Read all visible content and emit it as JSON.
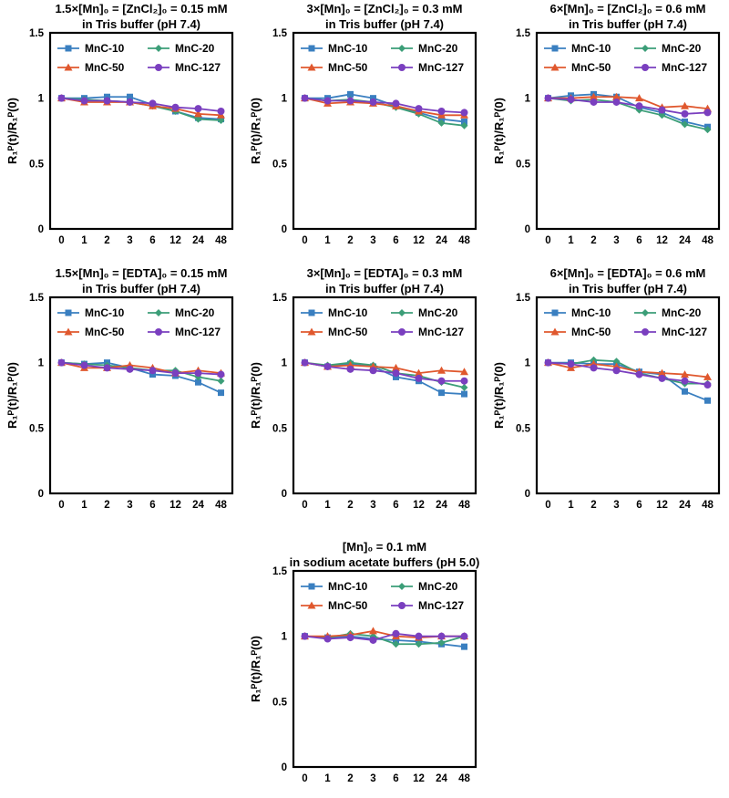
{
  "colors": {
    "MnC-10": "#3a7fc0",
    "MnC-20": "#3c9e78",
    "MnC-50": "#e0582e",
    "MnC-127": "#7a3fbf"
  },
  "markers": {
    "MnC-10": "square",
    "MnC-20": "diamond",
    "MnC-50": "triangle",
    "MnC-127": "circle"
  },
  "chart_data": [
    {
      "type": "line",
      "title": "1.5×[Mn]₀ = [ZnCl₂]₀ = 0.15 mM",
      "subtitle": "in Tris buffer (pH 7.4)",
      "ylabel": "R₁ᴾ(t)/R₁ᴾ(0)",
      "xlabel": "",
      "categories": [
        "0",
        "1",
        "2",
        "3",
        "6",
        "12",
        "24",
        "48"
      ],
      "ylim": [
        0,
        1.5
      ],
      "yticks": [
        "0",
        "0.5",
        "1",
        "1.5"
      ],
      "legend_position": "top",
      "series": [
        {
          "name": "MnC-10",
          "values": [
            1.0,
            1.0,
            1.01,
            1.01,
            0.95,
            0.9,
            0.85,
            0.84
          ]
        },
        {
          "name": "MnC-20",
          "values": [
            1.0,
            0.99,
            0.98,
            0.97,
            0.94,
            0.9,
            0.84,
            0.83
          ]
        },
        {
          "name": "MnC-50",
          "values": [
            1.0,
            0.97,
            0.97,
            0.97,
            0.94,
            0.92,
            0.88,
            0.87
          ]
        },
        {
          "name": "MnC-127",
          "values": [
            1.0,
            0.98,
            0.98,
            0.97,
            0.96,
            0.93,
            0.92,
            0.9
          ]
        }
      ]
    },
    {
      "type": "line",
      "title": "3×[Mn]₀ = [ZnCl₂]₀ = 0.3 mM",
      "subtitle": "in Tris buffer (pH 7.4)",
      "ylabel": "R₁ᴾ(t)/R₁ᴾ(0)",
      "xlabel": "",
      "categories": [
        "0",
        "1",
        "2",
        "3",
        "6",
        "12",
        "24",
        "48"
      ],
      "ylim": [
        0,
        1.5
      ],
      "yticks": [
        "0",
        "0.5",
        "1",
        "1.5"
      ],
      "legend_position": "top",
      "series": [
        {
          "name": "MnC-10",
          "values": [
            1.0,
            1.0,
            1.03,
            1.0,
            0.94,
            0.89,
            0.84,
            0.82
          ]
        },
        {
          "name": "MnC-20",
          "values": [
            1.0,
            0.98,
            0.99,
            0.97,
            0.93,
            0.88,
            0.81,
            0.79
          ]
        },
        {
          "name": "MnC-50",
          "values": [
            1.0,
            0.96,
            0.97,
            0.96,
            0.94,
            0.9,
            0.87,
            0.87
          ]
        },
        {
          "name": "MnC-127",
          "values": [
            1.0,
            0.98,
            0.98,
            0.97,
            0.96,
            0.92,
            0.9,
            0.89
          ]
        }
      ]
    },
    {
      "type": "line",
      "title": "6×[Mn]₀ = [ZnCl₂]₀ = 0.6 mM",
      "subtitle": "in Tris buffer (pH 7.4)",
      "ylabel": "R₁ᴾ(t)/R₁ᴾ(0)",
      "xlabel": "",
      "categories": [
        "0",
        "1",
        "2",
        "3",
        "6",
        "12",
        "24",
        "48"
      ],
      "ylim": [
        0,
        1.5
      ],
      "yticks": [
        "0",
        "0.5",
        "1",
        "1.5"
      ],
      "legend_position": "top",
      "series": [
        {
          "name": "MnC-10",
          "values": [
            1.0,
            1.02,
            1.03,
            1.01,
            0.93,
            0.89,
            0.82,
            0.78
          ]
        },
        {
          "name": "MnC-20",
          "values": [
            1.0,
            0.98,
            0.99,
            0.97,
            0.91,
            0.87,
            0.8,
            0.76
          ]
        },
        {
          "name": "MnC-50",
          "values": [
            1.0,
            1.0,
            1.01,
            1.01,
            1.0,
            0.93,
            0.94,
            0.92
          ]
        },
        {
          "name": "MnC-127",
          "values": [
            1.0,
            0.99,
            0.97,
            0.97,
            0.94,
            0.91,
            0.88,
            0.89
          ]
        }
      ]
    },
    {
      "type": "line",
      "title": "1.5×[Mn]₀ = [EDTA]₀ = 0.15 mM",
      "subtitle": "in Tris buffer (pH 7.4)",
      "ylabel": "R₁ᴾ(t)/R₁ᴾ(0)",
      "xlabel": "",
      "categories": [
        "0",
        "1",
        "2",
        "3",
        "6",
        "12",
        "24",
        "48"
      ],
      "ylim": [
        0,
        1.5
      ],
      "yticks": [
        "0",
        "0.5",
        "1",
        "1.5"
      ],
      "legend_position": "top",
      "series": [
        {
          "name": "MnC-10",
          "values": [
            1.0,
            0.99,
            1.0,
            0.96,
            0.91,
            0.9,
            0.85,
            0.77
          ]
        },
        {
          "name": "MnC-20",
          "values": [
            1.0,
            0.99,
            0.98,
            0.96,
            0.94,
            0.94,
            0.89,
            0.86
          ]
        },
        {
          "name": "MnC-50",
          "values": [
            1.0,
            0.96,
            0.96,
            0.98,
            0.96,
            0.92,
            0.94,
            0.92
          ]
        },
        {
          "name": "MnC-127",
          "values": [
            1.0,
            0.98,
            0.96,
            0.95,
            0.94,
            0.92,
            0.92,
            0.91
          ]
        }
      ]
    },
    {
      "type": "line",
      "title": "3×[Mn]₀ = [EDTA]₀ = 0.3 mM",
      "subtitle": "in Tris buffer (pH 7.4)",
      "ylabel": "R₁ᴾ(t)/R₁ᴾ(0)",
      "xlabel": "",
      "categories": [
        "0",
        "1",
        "2",
        "3",
        "6",
        "12",
        "24",
        "48"
      ],
      "ylim": [
        0,
        1.5
      ],
      "yticks": [
        "0",
        "0.5",
        "1",
        "1.5"
      ],
      "legend_position": "top",
      "series": [
        {
          "name": "MnC-10",
          "values": [
            1.0,
            0.97,
            0.99,
            0.97,
            0.89,
            0.86,
            0.77,
            0.76
          ]
        },
        {
          "name": "MnC-20",
          "values": [
            1.0,
            0.98,
            1.0,
            0.98,
            0.92,
            0.9,
            0.85,
            0.81
          ]
        },
        {
          "name": "MnC-50",
          "values": [
            1.0,
            0.97,
            0.98,
            0.97,
            0.96,
            0.92,
            0.94,
            0.93
          ]
        },
        {
          "name": "MnC-127",
          "values": [
            1.0,
            0.97,
            0.95,
            0.94,
            0.92,
            0.88,
            0.86,
            0.86
          ]
        }
      ]
    },
    {
      "type": "line",
      "title": "6×[Mn]₀ = [EDTA]₀ = 0.6 mM",
      "subtitle": "in Tris buffer (pH 7.4)",
      "ylabel": "R₁ᴾ(t)/R₁ᴾ(0)",
      "xlabel": "",
      "categories": [
        "0",
        "1",
        "2",
        "3",
        "6",
        "12",
        "24",
        "48"
      ],
      "ylim": [
        0,
        1.5
      ],
      "yticks": [
        "0",
        "0.5",
        "1",
        "1.5"
      ],
      "legend_position": "top",
      "series": [
        {
          "name": "MnC-10",
          "values": [
            1.0,
            1.0,
            0.99,
            0.99,
            0.93,
            0.91,
            0.78,
            0.71
          ]
        },
        {
          "name": "MnC-20",
          "values": [
            1.0,
            0.99,
            1.02,
            1.01,
            0.92,
            0.88,
            0.84,
            0.84
          ]
        },
        {
          "name": "MnC-50",
          "values": [
            1.0,
            0.96,
            0.99,
            0.97,
            0.93,
            0.92,
            0.91,
            0.89
          ]
        },
        {
          "name": "MnC-127",
          "values": [
            1.0,
            0.99,
            0.96,
            0.94,
            0.91,
            0.88,
            0.86,
            0.83
          ]
        }
      ]
    },
    {
      "type": "line",
      "title": "[Mn]₀ = 0.1 mM",
      "subtitle": "in sodium acetate buffers (pH 5.0)",
      "ylabel": "R₁ᴾ(t)/R₁ᴾ(0)",
      "xlabel": "",
      "categories": [
        "0",
        "1",
        "2",
        "3",
        "6",
        "12",
        "24",
        "48"
      ],
      "ylim": [
        0,
        1.5
      ],
      "yticks": [
        "0",
        "0.5",
        "1",
        "1.5"
      ],
      "legend_position": "top",
      "series": [
        {
          "name": "MnC-10",
          "values": [
            1.0,
            0.99,
            1.0,
            0.98,
            0.97,
            0.96,
            0.94,
            0.92
          ]
        },
        {
          "name": "MnC-20",
          "values": [
            1.0,
            0.99,
            1.02,
            1.0,
            0.94,
            0.94,
            0.95,
            1.0
          ]
        },
        {
          "name": "MnC-50",
          "values": [
            1.0,
            1.0,
            1.01,
            1.04,
            1.0,
            0.99,
            1.0,
            1.0
          ]
        },
        {
          "name": "MnC-127",
          "values": [
            1.0,
            0.98,
            0.99,
            0.97,
            1.02,
            1.0,
            1.0,
            1.0
          ]
        }
      ]
    }
  ]
}
